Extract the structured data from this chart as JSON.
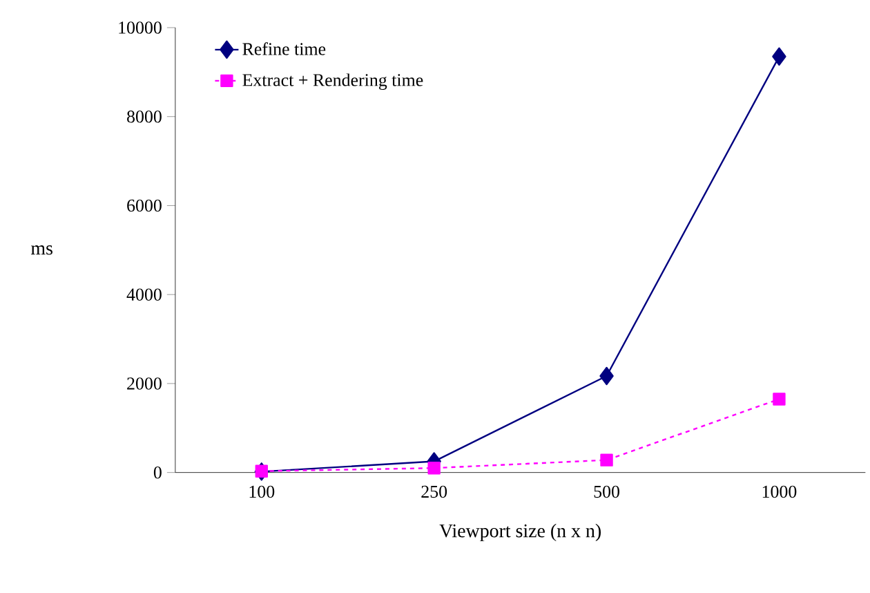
{
  "chart_data": {
    "type": "line",
    "xlabel": "Viewport size (n x n)",
    "ylabel": "ms",
    "categories": [
      "100",
      "250",
      "500",
      "1000"
    ],
    "series": [
      {
        "name": "Refine time",
        "color": "#000080",
        "values": [
          20,
          250,
          2170,
          9350
        ],
        "marker": "diamond",
        "line_style": "solid"
      },
      {
        "name": "Extract + Rendering time",
        "color": "#ff00ff",
        "values": [
          30,
          100,
          280,
          1650
        ],
        "marker": "square",
        "line_style": "dashed"
      }
    ],
    "ylim": [
      0,
      10000
    ],
    "yticks": [
      0,
      2000,
      4000,
      6000,
      8000,
      10000
    ],
    "grid": false,
    "legend": "top left"
  }
}
